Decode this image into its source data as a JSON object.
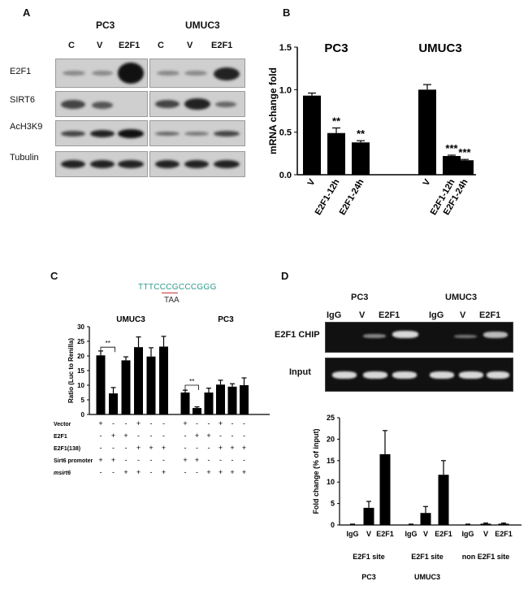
{
  "panels": {
    "A": {
      "letter": "A",
      "groups": [
        "PC3",
        "UMUC3"
      ],
      "lanes": [
        "C",
        "V",
        "E2F1",
        "C",
        "V",
        "E2F1"
      ],
      "rows": [
        "E2F1",
        "SIRT6",
        "AcH3K9",
        "Tubulin"
      ]
    },
    "B": {
      "letter": "B"
    },
    "C": {
      "letter": "C",
      "seq_top": "TTTCCCGCCCGGG",
      "seq_highlight": "CGC",
      "seq_bottom": "TAA",
      "row_labels": [
        "Vector",
        "E2F1",
        "E2F1(138)",
        "Sirt6 promoter",
        "msirt6"
      ],
      "signs": [
        [
          "+",
          "-",
          "-",
          "+",
          "-",
          "-",
          "+",
          "-",
          "-",
          "+",
          "-",
          "-"
        ],
        [
          "-",
          "+",
          "+",
          "-",
          "-",
          "-",
          "-",
          "+",
          "+",
          "-",
          "-",
          "-"
        ],
        [
          "-",
          "-",
          "-",
          "+",
          "+",
          "+",
          "-",
          "-",
          "-",
          "+",
          "+",
          "+"
        ],
        [
          "+",
          "+",
          "-",
          "-",
          "-",
          "-",
          "+",
          "+",
          "-",
          "-",
          "-",
          "-"
        ],
        [
          "-",
          "-",
          "+",
          "+",
          "-",
          "+",
          "-",
          "-",
          "+",
          "+",
          "+",
          "+"
        ]
      ],
      "sig_label": "**"
    },
    "D": {
      "letter": "D",
      "groups": [
        "PC3",
        "UMUC3"
      ],
      "lanes": [
        "IgG",
        "V",
        "E2F1",
        "IgG",
        "V",
        "E2F1"
      ],
      "gel_rows": [
        "E2F1 CHIP",
        "Input"
      ]
    }
  },
  "chart_data": [
    {
      "type": "bar",
      "panel": "B",
      "groups": [
        "PC3",
        "UMUC3"
      ],
      "categories": [
        "V",
        "E2F1-12h",
        "E2F1-24h",
        "V",
        "E2F1-12h",
        "E2F1-24h"
      ],
      "values": [
        0.93,
        0.49,
        0.38,
        1.0,
        0.22,
        0.17
      ],
      "errors": [
        0.03,
        0.06,
        0.02,
        0.06,
        0.01,
        0.01
      ],
      "significance": [
        "",
        "**",
        "**",
        "",
        "***",
        "***"
      ],
      "ylabel": "mRNA change fold",
      "ylim": [
        0,
        1.5
      ],
      "yticks": [
        "0.0",
        "0.5",
        "1.0",
        "1.5"
      ],
      "color": "#000000"
    },
    {
      "type": "bar",
      "panel": "C",
      "groups": [
        "UMUC3",
        "PC3"
      ],
      "values": [
        20.2,
        7.2,
        18.5,
        23.0,
        19.8,
        23.2,
        7.5,
        2.2,
        7.5,
        10.2,
        9.5,
        10.0
      ],
      "errors": [
        1.5,
        2.0,
        1.2,
        3.5,
        3.0,
        3.5,
        0.8,
        0.4,
        1.5,
        1.5,
        1.0,
        2.5
      ],
      "ylabel": "Ratio (Luc to Renilla)",
      "ylim": [
        0,
        30
      ],
      "yticks": [
        "0",
        "5",
        "10",
        "15",
        "20",
        "25",
        "30"
      ],
      "color": "#000000"
    },
    {
      "type": "bar",
      "panel": "D",
      "categories": [
        "IgG",
        "V",
        "E2F1",
        "IgG",
        "V",
        "E2F1",
        "IgG",
        "V",
        "E2F1"
      ],
      "group_labels": [
        "E2F1 site",
        "E2F1 site",
        "non E2F1 site"
      ],
      "group_sublabels": [
        "PC3",
        "UMUC3",
        ""
      ],
      "values": [
        0.1,
        4.0,
        16.5,
        0.1,
        2.8,
        11.7,
        0.1,
        0.3,
        0.3
      ],
      "errors": [
        0.1,
        1.5,
        5.5,
        0.1,
        1.5,
        3.3,
        0.1,
        0.15,
        0.15
      ],
      "ylabel": "Fold change (% of input)",
      "ylim": [
        0,
        25
      ],
      "yticks": [
        "0",
        "5",
        "10",
        "15",
        "20",
        "25"
      ],
      "color": "#000000"
    }
  ]
}
